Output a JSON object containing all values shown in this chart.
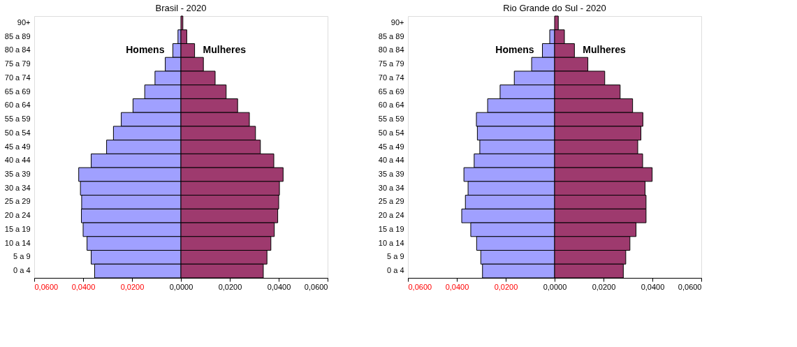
{
  "chart_data": [
    {
      "type": "bar",
      "orientation": "horizontal",
      "stacked": true,
      "title": "Brasil - 2020",
      "legend": false,
      "grid": false,
      "categories": [
        "90+",
        "85 a 89",
        "80 a 84",
        "75 a 79",
        "70 a 74",
        "65 a 69",
        "60 a 64",
        "55 a 59",
        "50 a 54",
        "45 a 49",
        "40 a 44",
        "35 a 39",
        "30 a 34",
        "25 a 29",
        "20 a 24",
        "15 a 19",
        "10 a 14",
        "5 a 9",
        "0 a 4"
      ],
      "series": [
        {
          "name": "Homens",
          "color": "#a0a0ff",
          "values": [
            null,
            -0.0012,
            -0.0033,
            -0.0064,
            -0.0106,
            -0.0148,
            -0.0196,
            -0.0244,
            -0.0276,
            -0.0304,
            -0.0367,
            -0.0418,
            -0.0411,
            -0.0406,
            -0.0407,
            -0.04,
            -0.0384,
            -0.0367,
            -0.0353
          ]
        },
        {
          "name": "Mulheres",
          "color": "#9e3a6e",
          "values": [
            0.0008,
            0.0024,
            0.0056,
            0.0092,
            0.014,
            0.0185,
            0.0232,
            0.028,
            0.0305,
            0.0325,
            0.038,
            0.0418,
            0.0403,
            0.04,
            0.0396,
            0.0382,
            0.0368,
            0.0352,
            0.0337
          ]
        }
      ],
      "xlim": [
        -0.06,
        0.06
      ],
      "xticks": [
        {
          "value": -0.06,
          "label": "0,0600"
        },
        {
          "value": -0.04,
          "label": "0,0400"
        },
        {
          "value": -0.02,
          "label": "0,0200"
        },
        {
          "value": 0,
          "label": "0,0000"
        },
        {
          "value": 0.02,
          "label": "0,0200"
        },
        {
          "value": 0.04,
          "label": "0,0400"
        },
        {
          "value": 0.06,
          "label": "0,0600"
        }
      ]
    },
    {
      "type": "bar",
      "orientation": "horizontal",
      "stacked": true,
      "title": "Rio Grande do Sul - 2020",
      "legend": false,
      "grid": false,
      "categories": [
        "90+",
        "85 a 89",
        "80 a 84",
        "75 a 79",
        "70 a 74",
        "65 a 69",
        "60 a 64",
        "55 a 59",
        "50 a 54",
        "45 a 49",
        "40 a 44",
        "35 a 39",
        "30 a 34",
        "25 a 29",
        "20 a 24",
        "15 a 19",
        "10 a 14",
        "5 a 9",
        "0 a 4"
      ],
      "series": [
        {
          "name": "Homens",
          "color": "#a0a0ff",
          "values": [
            null,
            -0.002,
            -0.005,
            -0.0094,
            -0.0165,
            -0.0223,
            -0.0274,
            -0.032,
            -0.0316,
            -0.0306,
            -0.0329,
            -0.0371,
            -0.0354,
            -0.0365,
            -0.038,
            -0.0343,
            -0.0319,
            -0.0302,
            -0.0295
          ]
        },
        {
          "name": "Mulheres",
          "color": "#9e3a6e",
          "values": [
            0.0015,
            0.004,
            0.0081,
            0.0136,
            0.0205,
            0.0268,
            0.0319,
            0.0361,
            0.0353,
            0.034,
            0.036,
            0.0399,
            0.037,
            0.0374,
            0.0374,
            0.0333,
            0.0308,
            0.0291,
            0.0281
          ]
        }
      ],
      "xlim": [
        -0.06,
        0.06
      ],
      "xticks": [
        {
          "value": -0.06,
          "label": "0,0600"
        },
        {
          "value": -0.04,
          "label": "0,0400"
        },
        {
          "value": -0.02,
          "label": "0,0200"
        },
        {
          "value": 0,
          "label": "0,0000"
        },
        {
          "value": 0.02,
          "label": "0,0200"
        },
        {
          "value": 0.04,
          "label": "0,0400"
        },
        {
          "value": 0.06,
          "label": "0,0600"
        }
      ]
    }
  ]
}
